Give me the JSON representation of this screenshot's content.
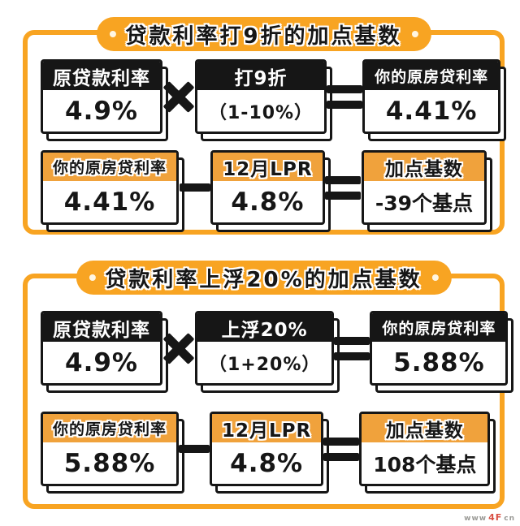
{
  "page": {
    "accent_orange": "#F8A422",
    "header_orange": "#F0A23C",
    "ink": "#161616"
  },
  "panels": [
    {
      "title": "贷款利率打9折的加点基数",
      "rows": [
        {
          "operator": "×",
          "equals": "=",
          "cells": [
            {
              "header": "原贷款利率",
              "value": "4.9%"
            },
            {
              "header": "打9折",
              "value": "（1-10%）"
            },
            {
              "header": "你的原房贷利率",
              "value": "4.41%"
            }
          ]
        },
        {
          "operator": "−",
          "equals": "=",
          "cells": [
            {
              "header": "你的原房贷利率",
              "value": "4.41%"
            },
            {
              "header": "12月LPR",
              "value": "4.8%"
            },
            {
              "header": "加点基数",
              "value": "-39个基点"
            }
          ]
        }
      ]
    },
    {
      "title": "贷款利率上浮20%的加点基数",
      "rows": [
        {
          "operator": "×",
          "equals": "=",
          "cells": [
            {
              "header": "原贷款利率",
              "value": "4.9%"
            },
            {
              "header": "上浮20%",
              "value": "（1+20%）"
            },
            {
              "header": "你的原房贷利率",
              "value": "5.88%"
            }
          ]
        },
        {
          "operator": "−",
          "equals": "=",
          "cells": [
            {
              "header": "你的原房贷利率",
              "value": "5.88%"
            },
            {
              "header": "12月LPR",
              "value": "4.8%"
            },
            {
              "header": "加点基数",
              "value": "108个基点"
            }
          ]
        }
      ]
    }
  ],
  "watermark": {
    "prefix": "www",
    "logo": "4F",
    "suffix": "cn"
  }
}
